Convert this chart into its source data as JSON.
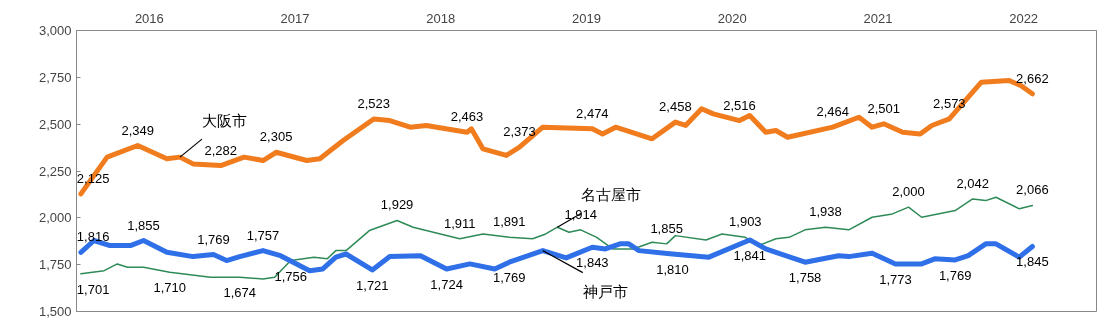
{
  "chart_data": {
    "type": "line",
    "xlim": [
      2016,
      2023
    ],
    "xticks": [
      {
        "value": 2016.5,
        "label": "2016"
      },
      {
        "value": 2017.5,
        "label": "2017"
      },
      {
        "value": 2018.5,
        "label": "2018"
      },
      {
        "value": 2019.5,
        "label": "2019"
      },
      {
        "value": 2020.5,
        "label": "2020"
      },
      {
        "value": 2021.5,
        "label": "2021"
      },
      {
        "value": 2022.5,
        "label": "2022"
      }
    ],
    "ylim": [
      1500,
      3000
    ],
    "yticks": [
      {
        "value": 1500,
        "label": "1,500"
      },
      {
        "value": 1750,
        "label": "1,750"
      },
      {
        "value": 2000,
        "label": "2,000"
      },
      {
        "value": 2250,
        "label": "2,250"
      },
      {
        "value": 2500,
        "label": "2,500"
      },
      {
        "value": 2750,
        "label": "2,750"
      },
      {
        "value": 3000,
        "label": "3,000"
      }
    ],
    "grid": false,
    "marker": "none",
    "line_style": "solid",
    "series": [
      {
        "name": "大阪市",
        "color": "#f07c1e",
        "x": [
          2016.03,
          2016.21,
          2016.42,
          2016.62,
          2016.71,
          2016.8,
          2016.99,
          2017.15,
          2017.28,
          2017.37,
          2017.58,
          2017.67,
          2017.83,
          2018.04,
          2018.15,
          2018.29,
          2018.4,
          2018.68,
          2018.71,
          2018.79,
          2018.95,
          2019.04,
          2019.2,
          2019.54,
          2019.61,
          2019.7,
          2019.95,
          2020.11,
          2020.18,
          2020.29,
          2020.37,
          2020.55,
          2020.62,
          2020.73,
          2020.8,
          2020.88,
          2021.19,
          2021.37,
          2021.46,
          2021.54,
          2021.67,
          2021.79,
          2021.87,
          2021.99,
          2022.12,
          2022.21,
          2022.4,
          2022.48,
          2022.56
        ],
        "values": [
          2128,
          2324,
          2386,
          2315,
          2324,
          2288,
          2279,
          2324,
          2306,
          2350,
          2306,
          2315,
          2413,
          2528,
          2519,
          2484,
          2493,
          2457,
          2475,
          2368,
          2333,
          2377,
          2484,
          2475,
          2448,
          2484,
          2422,
          2511,
          2493,
          2582,
          2555,
          2519,
          2546,
          2457,
          2466,
          2430,
          2484,
          2537,
          2484,
          2502,
          2457,
          2448,
          2493,
          2528,
          2644,
          2724,
          2733,
          2706,
          2662
        ]
      },
      {
        "name": "名古屋市",
        "color": "#2e8b57",
        "x": [
          2016.03,
          2016.19,
          2016.28,
          2016.35,
          2016.46,
          2016.64,
          2016.92,
          2017.12,
          2017.28,
          2017.36,
          2017.47,
          2017.63,
          2017.72,
          2017.78,
          2017.85,
          2018.01,
          2018.2,
          2018.31,
          2018.4,
          2018.63,
          2018.79,
          2018.97,
          2019.13,
          2019.22,
          2019.3,
          2019.38,
          2019.46,
          2019.57,
          2019.68,
          2019.82,
          2019.95,
          2020.05,
          2020.11,
          2020.32,
          2020.43,
          2020.59,
          2020.68,
          2020.8,
          2020.89,
          2021.0,
          2021.14,
          2021.3,
          2021.46,
          2021.6,
          2021.71,
          2021.8,
          2022.03,
          2022.15,
          2022.24,
          2022.31,
          2022.47,
          2022.56
        ],
        "values": [
          1701,
          1718,
          1754,
          1736,
          1736,
          1709,
          1683,
          1683,
          1674,
          1683,
          1772,
          1790,
          1781,
          1825,
          1825,
          1932,
          1986,
          1950,
          1932,
          1888,
          1914,
          1896,
          1888,
          1914,
          1950,
          1923,
          1936,
          1896,
          1834,
          1834,
          1870,
          1861,
          1905,
          1882,
          1914,
          1896,
          1852,
          1888,
          1896,
          1936,
          1950,
          1936,
          2003,
          2021,
          2057,
          2003,
          2039,
          2101,
          2092,
          2110,
          2048,
          2066
        ]
      },
      {
        "name": "神戸市",
        "color": "#2f6fe8",
        "x": [
          2016.03,
          2016.12,
          2016.23,
          2016.37,
          2016.46,
          2016.62,
          2016.8,
          2016.94,
          2017.03,
          2017.12,
          2017.28,
          2017.4,
          2017.6,
          2017.69,
          2017.78,
          2017.85,
          2018.03,
          2018.15,
          2018.36,
          2018.54,
          2018.7,
          2018.87,
          2018.97,
          2019.2,
          2019.36,
          2019.54,
          2019.63,
          2019.73,
          2019.79,
          2019.86,
          2020.09,
          2020.34,
          2020.62,
          2020.73,
          2021.0,
          2021.23,
          2021.3,
          2021.46,
          2021.62,
          2021.8,
          2021.89,
          2022.03,
          2022.12,
          2022.24,
          2022.31,
          2022.47,
          2022.56
        ],
        "values": [
          1816,
          1879,
          1852,
          1852,
          1879,
          1816,
          1793,
          1804,
          1772,
          1793,
          1825,
          1798,
          1718,
          1727,
          1790,
          1807,
          1722,
          1793,
          1798,
          1727,
          1754,
          1727,
          1763,
          1825,
          1786,
          1843,
          1834,
          1861,
          1861,
          1825,
          1807,
          1790,
          1882,
          1834,
          1763,
          1798,
          1793,
          1811,
          1754,
          1754,
          1781,
          1775,
          1798,
          1861,
          1861,
          1790,
          1847
        ]
      }
    ],
    "annotations": [
      {
        "text": "2,125",
        "x": 2016.03,
        "y": 2128
      },
      {
        "text": "2,349",
        "x": 2016.42,
        "y": 2386
      },
      {
        "text": "2,282",
        "x": 2016.99,
        "y": 2279
      },
      {
        "text": "2,305",
        "x": 2017.37,
        "y": 2350
      },
      {
        "text": "2,523",
        "x": 2018.04,
        "y": 2528
      },
      {
        "text": "2,463",
        "x": 2018.68,
        "y": 2457
      },
      {
        "text": "2,373",
        "x": 2019.04,
        "y": 2377
      },
      {
        "text": "2,474",
        "x": 2019.54,
        "y": 2475
      },
      {
        "text": "2,458",
        "x": 2020.11,
        "y": 2511
      },
      {
        "text": "2,516",
        "x": 2020.55,
        "y": 2519
      },
      {
        "text": "2,464",
        "x": 2021.19,
        "y": 2484
      },
      {
        "text": "2,501",
        "x": 2021.54,
        "y": 2502
      },
      {
        "text": "2,573",
        "x": 2021.99,
        "y": 2528
      },
      {
        "text": "2,662",
        "x": 2022.56,
        "y": 2662
      },
      {
        "text": "1,701",
        "x": 2016.03,
        "y": 1701
      },
      {
        "text": "1,710",
        "x": 2016.64,
        "y": 1709
      },
      {
        "text": "1,674",
        "x": 2017.12,
        "y": 1683
      },
      {
        "text": "1,756",
        "x": 2017.47,
        "y": 1772
      },
      {
        "text": "1,929",
        "x": 2018.2,
        "y": 1986
      },
      {
        "text": "1,911",
        "x": 2018.63,
        "y": 1888
      },
      {
        "text": "1,891",
        "x": 2018.97,
        "y": 1896
      },
      {
        "text": "1,914",
        "x": 2019.46,
        "y": 1936
      },
      {
        "text": "1,855",
        "x": 2020.05,
        "y": 1861
      },
      {
        "text": "1,903",
        "x": 2020.59,
        "y": 1896
      },
      {
        "text": "1,938",
        "x": 2021.14,
        "y": 1950
      },
      {
        "text": "2,000",
        "x": 2021.71,
        "y": 2057
      },
      {
        "text": "2,042",
        "x": 2022.15,
        "y": 2101
      },
      {
        "text": "2,066",
        "x": 2022.56,
        "y": 2066
      },
      {
        "text": "1,816",
        "x": 2016.03,
        "y": 1816
      },
      {
        "text": "1,855",
        "x": 2016.46,
        "y": 1879
      },
      {
        "text": "1,769",
        "x": 2016.94,
        "y": 1804
      },
      {
        "text": "1,757",
        "x": 2017.28,
        "y": 1825
      },
      {
        "text": "1,721",
        "x": 2018.03,
        "y": 1722
      },
      {
        "text": "1,724",
        "x": 2018.54,
        "y": 1727
      },
      {
        "text": "1,769",
        "x": 2018.97,
        "y": 1763
      },
      {
        "text": "1,843",
        "x": 2019.54,
        "y": 1843
      },
      {
        "text": "1,810",
        "x": 2020.09,
        "y": 1807
      },
      {
        "text": "1,841",
        "x": 2020.62,
        "y": 1882
      },
      {
        "text": "1,758",
        "x": 2021.0,
        "y": 1763
      },
      {
        "text": "1,773",
        "x": 2021.62,
        "y": 1754
      },
      {
        "text": "1,769",
        "x": 2022.03,
        "y": 1775
      },
      {
        "text": "1,845",
        "x": 2022.56,
        "y": 1847
      }
    ]
  }
}
